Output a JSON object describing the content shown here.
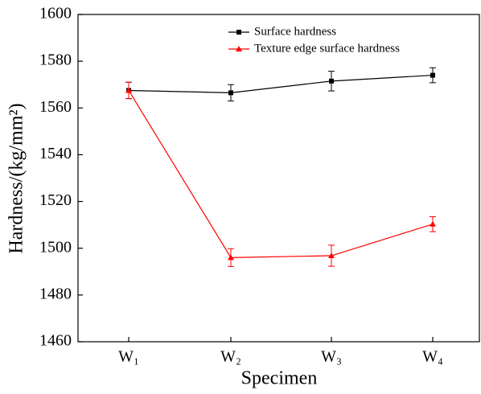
{
  "chart_data": {
    "type": "line",
    "x_label": "Specimen",
    "y_label": "Hardness/(kg/mm²)",
    "categories": [
      "W₁",
      "W₂",
      "W₃",
      "W₄"
    ],
    "series": [
      {
        "name": "Surface hardness",
        "color": "#000000",
        "marker": "square",
        "values": [
          1567.5,
          1566.5,
          1571.5,
          1574
        ],
        "errors": [
          3.5,
          3.5,
          4.2,
          3.2
        ]
      },
      {
        "name": "Texture edge surface hardness",
        "color": "#ff0000",
        "marker": "triangle",
        "values": [
          1567.5,
          1496,
          1496.8,
          1510.3
        ],
        "errors": [
          3.5,
          3.8,
          4.5,
          3.2
        ]
      }
    ],
    "ylim": [
      1460,
      1600
    ],
    "yticks": [
      1460,
      1480,
      1500,
      1520,
      1540,
      1560,
      1580,
      1600
    ],
    "legend": "upper center"
  }
}
